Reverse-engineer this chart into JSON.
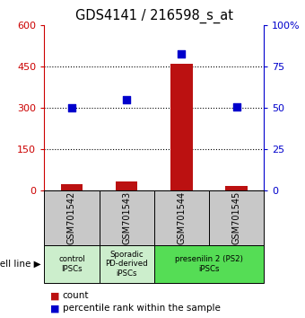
{
  "title": "GDS4141 / 216598_s_at",
  "samples": [
    "GSM701542",
    "GSM701543",
    "GSM701544",
    "GSM701545"
  ],
  "counts": [
    25,
    35,
    460,
    18
  ],
  "percentiles": [
    50,
    55,
    83,
    51
  ],
  "ylim_left": [
    0,
    600
  ],
  "ylim_right": [
    0,
    100
  ],
  "yticks_left": [
    0,
    150,
    300,
    450,
    600
  ],
  "yticks_right": [
    0,
    25,
    50,
    75,
    100
  ],
  "bar_color": "#BB1111",
  "dot_color": "#0000CC",
  "bar_width": 0.4,
  "group_configs": [
    {
      "label": "control\nIPSCs",
      "samples": [
        0
      ],
      "facecolor": "#cceecc"
    },
    {
      "label": "Sporadic\nPD-derived\niPSCs",
      "samples": [
        1
      ],
      "facecolor": "#cceecc"
    },
    {
      "label": "presenilin 2 (PS2)\niPSCs",
      "samples": [
        2,
        3
      ],
      "facecolor": "#55dd55"
    }
  ],
  "sample_box_color": "#c8c8c8",
  "title_fontsize": 10.5,
  "left_tick_color": "#CC0000",
  "right_tick_color": "#0000CC",
  "legend_count_label": "count",
  "legend_pct_label": "percentile rank within the sample",
  "cell_line_label": "cell line"
}
